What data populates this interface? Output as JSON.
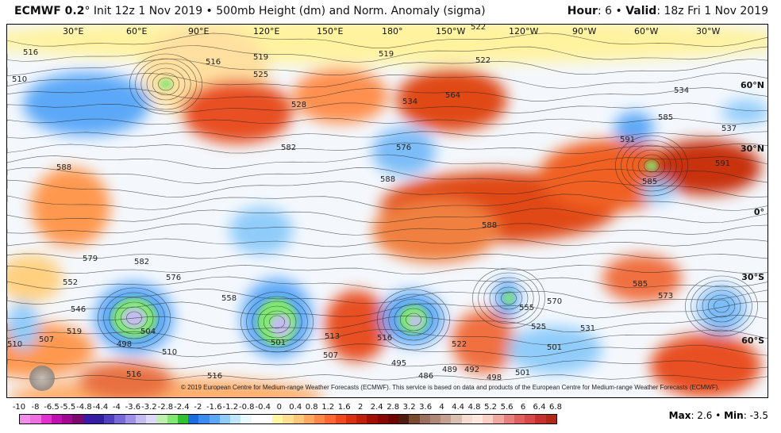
{
  "header": {
    "model": "ECMWF 0.2",
    "description": "° Init 12z 1 Nov 2019 • 500mb Height (dm) and Norm. Anomaly (sigma)",
    "hour_label": "Hour",
    "hour": ": 6 • ",
    "valid_label": "Valid",
    "valid": ": 18z Fri 1 Nov 2019"
  },
  "map": {
    "longitudes": [
      "30°E",
      "60°E",
      "90°E",
      "120°E",
      "150°E",
      "180°",
      "150°W",
      "120°W",
      "90°W",
      "60°W",
      "30°W"
    ],
    "latitudes": [
      "60°N",
      "30°N",
      "0°",
      "30°S",
      "60°S"
    ],
    "contour_labels": [
      "522",
      "516",
      "519",
      "516",
      "525",
      "528",
      "534",
      "519",
      "522",
      "564",
      "585",
      "591",
      "591",
      "585",
      "588",
      "582",
      "576",
      "588",
      "588",
      "579",
      "582",
      "576",
      "570",
      "555",
      "546",
      "519",
      "510",
      "507",
      "498",
      "504",
      "510",
      "516",
      "513",
      "516",
      "501",
      "507",
      "495",
      "486",
      "489",
      "492",
      "498",
      "501",
      "531",
      "525",
      "501",
      "516",
      "573",
      "585",
      "534",
      "537",
      "510",
      "552",
      "558",
      "522"
    ],
    "copyright": "© 2019 European Centre for Medium-range Weather Forecasts (ECMWF). This service is based on data and products of the European Centre for Medium-range Weather Forecasts (ECMWF).",
    "logo_text": "WeatherBell"
  },
  "colorbar": {
    "labels": [
      "-10",
      "-8",
      "-6.5",
      "-5.5",
      "-4.8",
      "-4.4",
      "-4",
      "-3.6",
      "-3.2",
      "-2.8",
      "-2.4",
      "-2",
      "-1.6",
      "-1.2",
      "-0.8",
      "-0.4",
      "0",
      "0.4",
      "0.8",
      "1.2",
      "1.6",
      "2",
      "2.4",
      "2.8",
      "3.2",
      "3.6",
      "4",
      "4.4",
      "4.8",
      "5.2",
      "5.6",
      "6",
      "6.4",
      "6.8"
    ],
    "colors": [
      "#f08ee8",
      "#ee70e0",
      "#e030d0",
      "#c010b0",
      "#a00890",
      "#7a0a70",
      "#3a1aa8",
      "#3020a0",
      "#5040c0",
      "#7868d8",
      "#a090e8",
      "#c4bcf0",
      "#dcd8f8",
      "#c0f0b0",
      "#80e870",
      "#30c030",
      "#1c6ee0",
      "#3c8cf0",
      "#5ca8f8",
      "#90ccfa",
      "#c0e6fc",
      "#e8fafe",
      "#ffffff",
      "#ffffff",
      "#fff8a0",
      "#ffe090",
      "#ffc878",
      "#ffa860",
      "#ff8848",
      "#ff6830",
      "#f04820",
      "#d83010",
      "#c02008",
      "#a01000",
      "#880800",
      "#700400",
      "#501c10",
      "#7a4a30",
      "#9a7060",
      "#b08878",
      "#c4a090",
      "#d8c0b0",
      "#f4dcd0",
      "#fde8e0",
      "#f8d0c8",
      "#f0a8a0",
      "#e88080",
      "#e06060",
      "#d84848",
      "#c83030",
      "#b02818"
    ]
  },
  "stats": {
    "max_label": "Max",
    "max": ": 2.6 • ",
    "min_label": "Min",
    "min": ": -3.5"
  }
}
